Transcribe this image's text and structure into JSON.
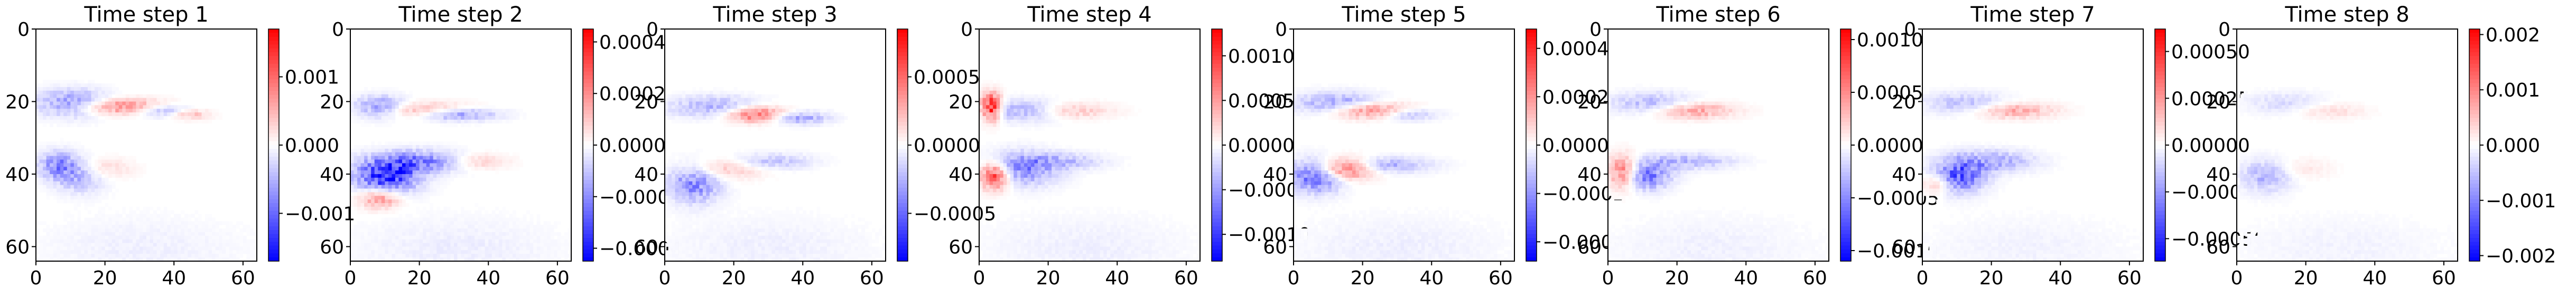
{
  "figure": {
    "background": "#ffffff"
  },
  "colormap": {
    "name": "bwr",
    "low": "#0000ff",
    "mid": "#ffffff",
    "high": "#ff0000"
  },
  "chart_data": [
    {
      "type": "heatmap",
      "title": "Time step 1",
      "xlim": [
        0,
        64
      ],
      "ylim": [
        64,
        0
      ],
      "xticks": [
        "0",
        "20",
        "40",
        "60"
      ],
      "yticks": [
        "0",
        "20",
        "40",
        "60"
      ],
      "colorbar": {
        "min": -0.0017,
        "max": 0.0017,
        "tick_values": [
          -0.001,
          0,
          0.001
        ],
        "tick_labels": [
          "−0.001",
          "0.000",
          "0.001"
        ]
      },
      "vmax": 0.0017,
      "blobs": [
        {
          "x": 10,
          "y": 20,
          "sx": 7,
          "sy": 2.5,
          "v": -0.0007
        },
        {
          "x": 24,
          "y": 21,
          "sx": 9,
          "sy": 1.5,
          "v": 0.0008
        },
        {
          "x": 36,
          "y": 22,
          "sx": 6,
          "sy": 1.2,
          "v": -0.0006
        },
        {
          "x": 44,
          "y": 23,
          "sx": 4,
          "sy": 1.0,
          "v": 0.0005
        },
        {
          "x": 6,
          "y": 37,
          "sx": 4,
          "sy": 2.5,
          "v": -0.0007
        },
        {
          "x": 12,
          "y": 40,
          "sx": 5,
          "sy": 3.0,
          "v": -0.0005
        },
        {
          "x": 18,
          "y": 38,
          "sx": 6,
          "sy": 2.0,
          "v": 0.0003
        },
        {
          "x": 30,
          "y": 60,
          "sx": 20,
          "sy": 6,
          "v": -0.0001
        }
      ]
    },
    {
      "type": "heatmap",
      "title": "Time step 2",
      "xlim": [
        0,
        64
      ],
      "ylim": [
        64,
        0
      ],
      "xticks": [
        "0",
        "20",
        "40",
        "60"
      ],
      "yticks": [
        "0",
        "20",
        "40",
        "60"
      ],
      "colorbar": {
        "min": -0.00045,
        "max": 0.00045,
        "tick_values": [
          -0.0004,
          -0.0002,
          0,
          0.0002,
          0.0004
        ],
        "tick_labels": [
          "−0.0004",
          "−0.0002",
          "0.0000",
          "0.0002",
          "0.0004"
        ]
      },
      "vmax": 0.00045,
      "blobs": [
        {
          "x": 8,
          "y": 21,
          "sx": 5,
          "sy": 2.0,
          "v": -0.0002
        },
        {
          "x": 20,
          "y": 22,
          "sx": 10,
          "sy": 1.5,
          "v": 0.00015
        },
        {
          "x": 30,
          "y": 23,
          "sx": 8,
          "sy": 1.2,
          "v": -0.0002
        },
        {
          "x": 10,
          "y": 40,
          "sx": 6,
          "sy": 3.0,
          "v": -0.0004
        },
        {
          "x": 20,
          "y": 36,
          "sx": 9,
          "sy": 2.0,
          "v": -0.0002
        },
        {
          "x": 36,
          "y": 36,
          "sx": 6,
          "sy": 1.5,
          "v": 0.0001
        },
        {
          "x": 8,
          "y": 46,
          "sx": 4,
          "sy": 2.0,
          "v": 0.0002
        },
        {
          "x": 30,
          "y": 60,
          "sx": 20,
          "sy": 6,
          "v": -3e-05
        }
      ]
    },
    {
      "type": "heatmap",
      "title": "Time step 3",
      "xlim": [
        0,
        64
      ],
      "ylim": [
        64,
        0
      ],
      "xticks": [
        "0",
        "20",
        "40",
        "60"
      ],
      "yticks": [
        "0",
        "20",
        "40",
        "60"
      ],
      "colorbar": {
        "min": -0.00085,
        "max": 0.00085,
        "tick_values": [
          -0.0005,
          0,
          0.0005
        ],
        "tick_labels": [
          "−0.0005",
          "0.0000",
          "0.0005"
        ]
      },
      "vmax": 0.00085,
      "blobs": [
        {
          "x": 14,
          "y": 21,
          "sx": 9,
          "sy": 2.0,
          "v": -0.00025
        },
        {
          "x": 26,
          "y": 23,
          "sx": 6,
          "sy": 1.5,
          "v": 0.0005
        },
        {
          "x": 38,
          "y": 24,
          "sx": 6,
          "sy": 1.2,
          "v": -0.0003
        },
        {
          "x": 8,
          "y": 42,
          "sx": 5,
          "sy": 3.5,
          "v": -0.0004
        },
        {
          "x": 16,
          "y": 38,
          "sx": 8,
          "sy": 2.0,
          "v": 0.0002
        },
        {
          "x": 30,
          "y": 36,
          "sx": 8,
          "sy": 1.5,
          "v": -0.0002
        },
        {
          "x": 30,
          "y": 60,
          "sx": 20,
          "sy": 6,
          "v": -5e-05
        }
      ]
    },
    {
      "type": "heatmap",
      "title": "Time step 4",
      "xlim": [
        0,
        64
      ],
      "ylim": [
        64,
        0
      ],
      "xticks": [
        "0",
        "20",
        "40",
        "60"
      ],
      "yticks": [
        "0",
        "20",
        "40",
        "60"
      ],
      "colorbar": {
        "min": -0.0013,
        "max": 0.0013,
        "tick_values": [
          -0.001,
          -0.0005,
          0,
          0.0005,
          0.001
        ],
        "tick_labels": [
          "−0.0010",
          "−0.0005",
          "0.0000",
          "0.0005",
          "0.0010"
        ]
      },
      "vmax": 0.0013,
      "blobs": [
        {
          "x": 3,
          "y": 21,
          "sx": 2,
          "sy": 2.5,
          "v": 0.0012
        },
        {
          "x": 12,
          "y": 22,
          "sx": 8,
          "sy": 2.0,
          "v": -0.0004
        },
        {
          "x": 26,
          "y": 22,
          "sx": 8,
          "sy": 1.5,
          "v": 0.0003
        },
        {
          "x": 4,
          "y": 40,
          "sx": 3,
          "sy": 2.5,
          "v": 0.001
        },
        {
          "x": 12,
          "y": 38,
          "sx": 7,
          "sy": 3.0,
          "v": -0.0006
        },
        {
          "x": 24,
          "y": 36,
          "sx": 8,
          "sy": 1.5,
          "v": -0.0003
        },
        {
          "x": 30,
          "y": 60,
          "sx": 20,
          "sy": 6,
          "v": -8e-05
        }
      ]
    },
    {
      "type": "heatmap",
      "title": "Time step 5",
      "xlim": [
        0,
        64
      ],
      "ylim": [
        64,
        0
      ],
      "xticks": [
        "0",
        "20",
        "40",
        "60"
      ],
      "yticks": [
        "0",
        "20",
        "40",
        "60"
      ],
      "colorbar": {
        "min": -0.00048,
        "max": 0.00048,
        "tick_values": [
          -0.0004,
          -0.0002,
          0,
          0.0002,
          0.0004
        ],
        "tick_labels": [
          "−0.0004",
          "−0.0002",
          "0.0000",
          "0.0002",
          "0.0004"
        ]
      },
      "vmax": 0.00048,
      "blobs": [
        {
          "x": 12,
          "y": 20,
          "sx": 8,
          "sy": 2.0,
          "v": -0.00018
        },
        {
          "x": 22,
          "y": 22,
          "sx": 8,
          "sy": 1.5,
          "v": 0.00025
        },
        {
          "x": 32,
          "y": 23,
          "sx": 6,
          "sy": 1.2,
          "v": -0.00015
        },
        {
          "x": 6,
          "y": 40,
          "sx": 5,
          "sy": 3.0,
          "v": -0.0003
        },
        {
          "x": 14,
          "y": 38,
          "sx": 6,
          "sy": 2.0,
          "v": 0.0003
        },
        {
          "x": 26,
          "y": 37,
          "sx": 9,
          "sy": 1.5,
          "v": -0.00015
        },
        {
          "x": 30,
          "y": 60,
          "sx": 20,
          "sy": 6,
          "v": -3e-05
        }
      ]
    },
    {
      "type": "heatmap",
      "title": "Time step 6",
      "xlim": [
        0,
        64
      ],
      "ylim": [
        64,
        0
      ],
      "xticks": [
        "0",
        "20",
        "40",
        "60"
      ],
      "yticks": [
        "0",
        "20",
        "40",
        "60"
      ],
      "colorbar": {
        "min": -0.0011,
        "max": 0.0011,
        "tick_values": [
          -0.001,
          -0.0005,
          0,
          0.0005,
          0.001
        ],
        "tick_labels": [
          "−0.0010",
          "−0.0005",
          "0.0000",
          "0.0005",
          "0.0010"
        ]
      },
      "vmax": 0.0011,
      "blobs": [
        {
          "x": 12,
          "y": 20,
          "sx": 8,
          "sy": 2.0,
          "v": -0.0003
        },
        {
          "x": 24,
          "y": 22,
          "sx": 8,
          "sy": 1.5,
          "v": 0.0004
        },
        {
          "x": 4,
          "y": 39,
          "sx": 3,
          "sy": 3.0,
          "v": 0.0007
        },
        {
          "x": 10,
          "y": 40,
          "sx": 5,
          "sy": 2.5,
          "v": -0.0006
        },
        {
          "x": 22,
          "y": 36,
          "sx": 9,
          "sy": 1.5,
          "v": -0.0003
        },
        {
          "x": 30,
          "y": 60,
          "sx": 20,
          "sy": 6,
          "v": -6e-05
        }
      ]
    },
    {
      "type": "heatmap",
      "title": "Time step 7",
      "xlim": [
        0,
        64
      ],
      "ylim": [
        64,
        0
      ],
      "xticks": [
        "0",
        "20",
        "40",
        "60"
      ],
      "yticks": [
        "0",
        "20",
        "40",
        "60"
      ],
      "colorbar": {
        "min": -0.00062,
        "max": 0.00062,
        "tick_values": [
          -0.0005,
          -0.00025,
          0,
          0.00025,
          0.0005
        ],
        "tick_labels": [
          "−0.00050",
          "−0.00025",
          "0.00000",
          "0.00025",
          "0.00050"
        ]
      },
      "vmax": 0.00062,
      "blobs": [
        {
          "x": 12,
          "y": 20,
          "sx": 8,
          "sy": 2.0,
          "v": -0.00015
        },
        {
          "x": 26,
          "y": 22,
          "sx": 8,
          "sy": 1.5,
          "v": 0.0002
        },
        {
          "x": 10,
          "y": 40,
          "sx": 5,
          "sy": 3.0,
          "v": -0.0004
        },
        {
          "x": 20,
          "y": 36,
          "sx": 8,
          "sy": 2.0,
          "v": -0.0002
        },
        {
          "x": 4,
          "y": 42,
          "sx": 3,
          "sy": 2.0,
          "v": 0.0002
        },
        {
          "x": 30,
          "y": 60,
          "sx": 20,
          "sy": 6,
          "v": -3e-05
        }
      ]
    },
    {
      "type": "heatmap",
      "title": "Time step 8",
      "xlim": [
        0,
        64
      ],
      "ylim": [
        64,
        0
      ],
      "xticks": [
        "0",
        "20",
        "40",
        "60"
      ],
      "yticks": [
        "0",
        "20",
        "40",
        "60"
      ],
      "colorbar": {
        "min": -0.0021,
        "max": 0.0021,
        "tick_values": [
          -0.002,
          -0.001,
          0,
          0.001,
          0.002
        ],
        "tick_labels": [
          "−0.002",
          "−0.001",
          "0.000",
          "0.001",
          "0.002"
        ]
      },
      "vmax": 0.0021,
      "blobs": [
        {
          "x": 14,
          "y": 20,
          "sx": 8,
          "sy": 2.0,
          "v": -0.0003
        },
        {
          "x": 26,
          "y": 22,
          "sx": 7,
          "sy": 1.5,
          "v": 0.0003
        },
        {
          "x": 8,
          "y": 40,
          "sx": 5,
          "sy": 3.0,
          "v": -0.0006
        },
        {
          "x": 18,
          "y": 38,
          "sx": 6,
          "sy": 2.0,
          "v": 0.0002
        },
        {
          "x": 30,
          "y": 60,
          "sx": 20,
          "sy": 6,
          "v": -0.0001
        }
      ]
    }
  ]
}
